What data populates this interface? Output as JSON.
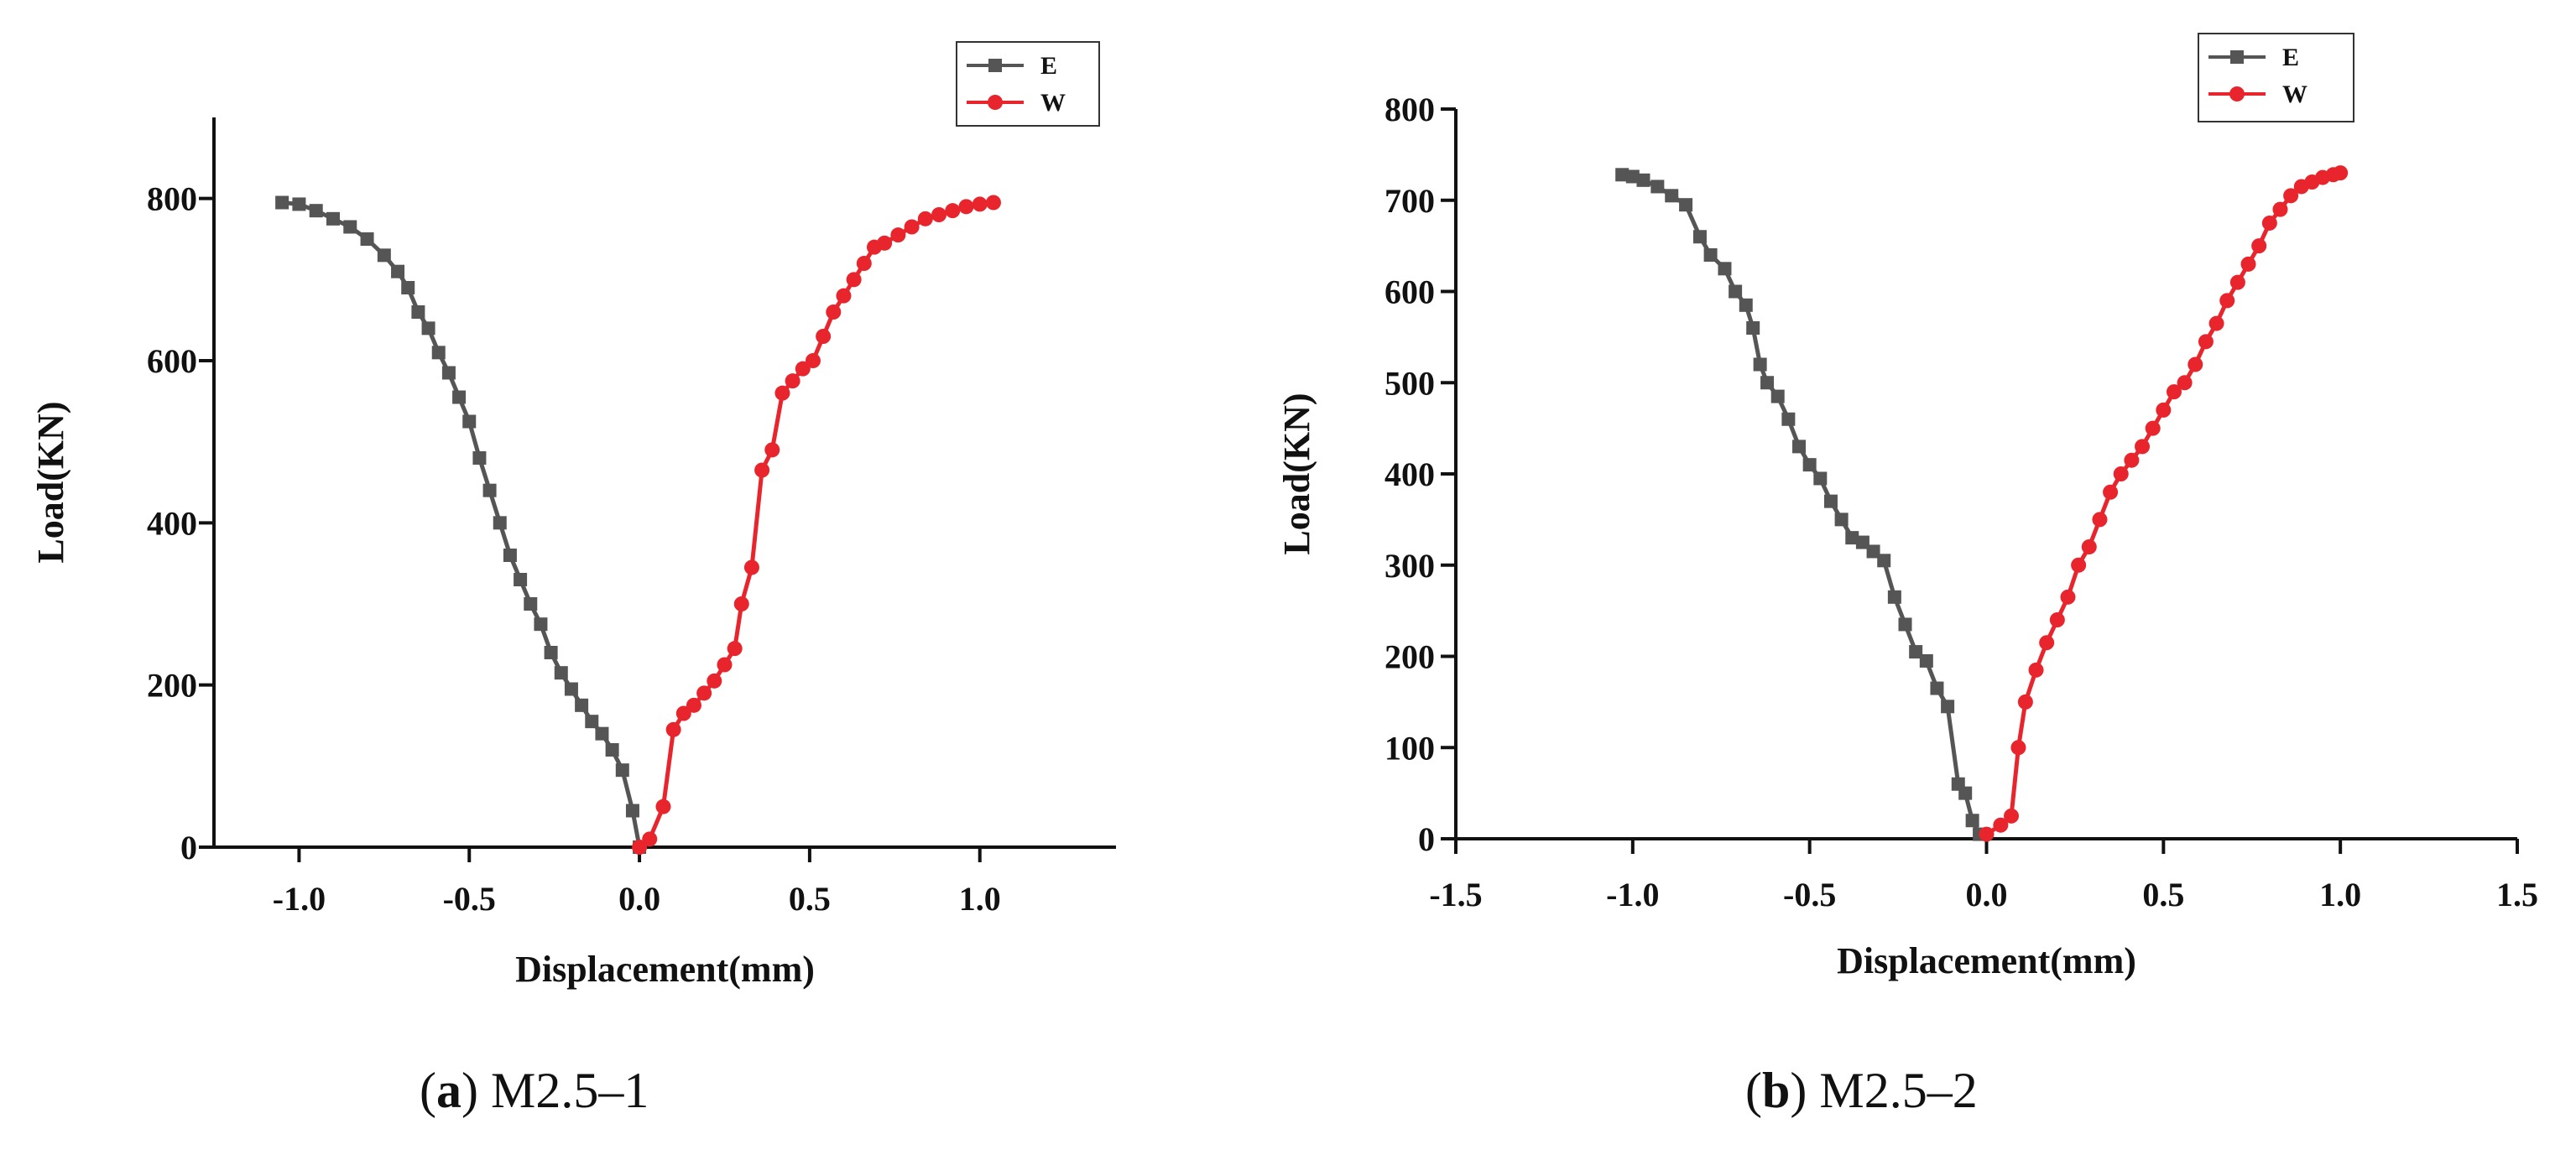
{
  "chart_data": [
    {
      "type": "line",
      "xlabel": "Displacement(mm)",
      "ylabel": "Load(KN)",
      "xlim": [
        -1.25,
        1.4
      ],
      "ylim": [
        0,
        900
      ],
      "xticks": [
        -1.0,
        -0.5,
        0.0,
        0.5,
        1.0
      ],
      "xtick_labels": [
        "-1.0",
        "-0.5",
        "0.0",
        "0.5",
        "1.0"
      ],
      "yticks": [
        0,
        200,
        400,
        600,
        800
      ],
      "ytick_labels": [
        "0",
        "200",
        "400",
        "600",
        "800"
      ],
      "legend_position": "top-right",
      "caption_letter": "a",
      "caption_text": ") M2.5–1",
      "series": [
        {
          "name": "E",
          "color": "#555555",
          "marker": "square",
          "x": [
            -1.05,
            -1.0,
            -0.95,
            -0.9,
            -0.85,
            -0.8,
            -0.75,
            -0.71,
            -0.68,
            -0.65,
            -0.62,
            -0.59,
            -0.56,
            -0.53,
            -0.5,
            -0.47,
            -0.44,
            -0.41,
            -0.38,
            -0.35,
            -0.32,
            -0.29,
            -0.26,
            -0.23,
            -0.2,
            -0.17,
            -0.14,
            -0.11,
            -0.08,
            -0.05,
            -0.02,
            0.0
          ],
          "y": [
            795,
            793,
            785,
            775,
            765,
            750,
            730,
            710,
            690,
            660,
            640,
            610,
            585,
            555,
            525,
            480,
            440,
            400,
            360,
            330,
            300,
            275,
            240,
            215,
            195,
            175,
            155,
            140,
            120,
            95,
            45,
            0
          ]
        },
        {
          "name": "W",
          "color": "#e8252c",
          "marker": "circle",
          "x": [
            0.0,
            0.03,
            0.07,
            0.1,
            0.13,
            0.16,
            0.19,
            0.22,
            0.25,
            0.28,
            0.3,
            0.33,
            0.36,
            0.39,
            0.42,
            0.45,
            0.48,
            0.51,
            0.54,
            0.57,
            0.6,
            0.63,
            0.66,
            0.69,
            0.72,
            0.76,
            0.8,
            0.84,
            0.88,
            0.92,
            0.96,
            1.0,
            1.04
          ],
          "y": [
            0,
            10,
            50,
            145,
            165,
            175,
            190,
            205,
            225,
            245,
            300,
            345,
            465,
            490,
            560,
            575,
            590,
            600,
            630,
            660,
            680,
            700,
            720,
            740,
            745,
            755,
            765,
            775,
            780,
            785,
            790,
            793,
            795
          ]
        }
      ]
    },
    {
      "type": "line",
      "xlabel": "Displacement(mm)",
      "ylabel": "Load(KN)",
      "xlim": [
        -1.5,
        1.5
      ],
      "ylim": [
        0,
        800
      ],
      "xticks": [
        -1.5,
        -1.0,
        -0.5,
        0.0,
        0.5,
        1.0,
        1.5
      ],
      "xtick_labels": [
        "-1.5",
        "-1.0",
        "-0.5",
        "0.0",
        "0.5",
        "1.0",
        "1.5"
      ],
      "yticks": [
        0,
        100,
        200,
        300,
        400,
        500,
        600,
        700,
        800
      ],
      "ytick_labels": [
        "0",
        "100",
        "200",
        "300",
        "400",
        "500",
        "600",
        "700",
        "800"
      ],
      "legend_position": "top-right",
      "caption_letter": "b",
      "caption_text": ") M2.5–2",
      "series": [
        {
          "name": "E",
          "color": "#555555",
          "marker": "square",
          "x": [
            -1.03,
            -1.0,
            -0.97,
            -0.93,
            -0.89,
            -0.85,
            -0.81,
            -0.78,
            -0.74,
            -0.71,
            -0.68,
            -0.66,
            -0.64,
            -0.62,
            -0.59,
            -0.56,
            -0.53,
            -0.5,
            -0.47,
            -0.44,
            -0.41,
            -0.38,
            -0.35,
            -0.32,
            -0.29,
            -0.26,
            -0.23,
            -0.2,
            -0.17,
            -0.14,
            -0.11,
            -0.08,
            -0.06,
            -0.04,
            -0.02
          ],
          "y": [
            728,
            726,
            722,
            715,
            705,
            695,
            660,
            640,
            625,
            600,
            585,
            560,
            520,
            500,
            485,
            460,
            430,
            410,
            395,
            370,
            350,
            330,
            325,
            315,
            305,
            265,
            235,
            205,
            195,
            165,
            145,
            60,
            50,
            20,
            5
          ]
        },
        {
          "name": "W",
          "color": "#e8252c",
          "marker": "circle",
          "x": [
            0.0,
            0.04,
            0.07,
            0.09,
            0.11,
            0.14,
            0.17,
            0.2,
            0.23,
            0.26,
            0.29,
            0.32,
            0.35,
            0.38,
            0.41,
            0.44,
            0.47,
            0.5,
            0.53,
            0.56,
            0.59,
            0.62,
            0.65,
            0.68,
            0.71,
            0.74,
            0.77,
            0.8,
            0.83,
            0.86,
            0.89,
            0.92,
            0.95,
            0.98,
            1.0
          ],
          "y": [
            5,
            15,
            25,
            100,
            150,
            185,
            215,
            240,
            265,
            300,
            320,
            350,
            380,
            400,
            415,
            430,
            450,
            470,
            490,
            500,
            520,
            545,
            565,
            590,
            610,
            630,
            650,
            675,
            690,
            705,
            715,
            720,
            725,
            728,
            730
          ]
        }
      ]
    }
  ]
}
